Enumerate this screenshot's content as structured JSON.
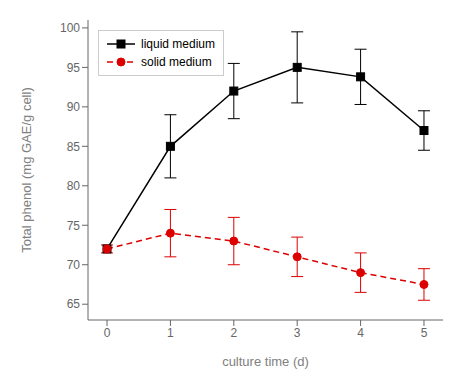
{
  "chart_data": {
    "type": "line",
    "xlabel": "culture time (d)",
    "ylabel": "Total phenol (mg GAE/g cell)",
    "x": [
      0,
      1,
      2,
      3,
      4,
      5
    ],
    "series": [
      {
        "name": "liquid medium",
        "color": "#000000",
        "marker": "square",
        "line_style": "solid",
        "values": [
          72.0,
          85.0,
          92.0,
          95.0,
          93.8,
          87.0
        ],
        "error": [
          0.0,
          4.0,
          3.5,
          4.5,
          3.5,
          2.5
        ]
      },
      {
        "name": "solid medium",
        "color": "#dd0000",
        "marker": "circle",
        "line_style": "dashed",
        "values": [
          72.0,
          74.0,
          73.0,
          71.0,
          69.0,
          67.5
        ],
        "error": [
          0.5,
          3.0,
          3.0,
          2.5,
          2.5,
          2.0
        ]
      }
    ],
    "xlim": [
      -0.3,
      5.3
    ],
    "ylim": [
      63,
      101
    ],
    "xticks": [
      0,
      1,
      2,
      3,
      4,
      5
    ],
    "yticks": [
      65,
      70,
      75,
      80,
      85,
      90,
      95,
      100
    ],
    "legend": "upper left",
    "grid": false
  }
}
